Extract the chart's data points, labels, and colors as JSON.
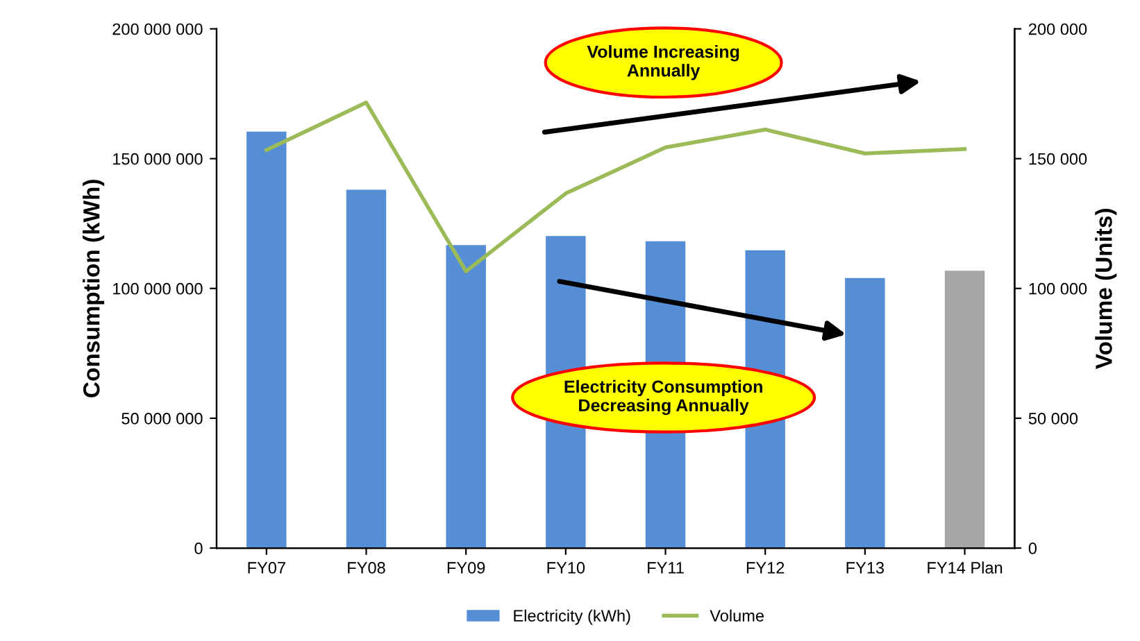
{
  "chart_data": {
    "type": "bar",
    "categories": [
      "FY07",
      "FY08",
      "FY09",
      "FY10",
      "FY11",
      "FY12",
      "FY13",
      "FY14 Plan"
    ],
    "ylabel": "Consumption (kWh)",
    "y2label": "Volume (Units)",
    "series": [
      {
        "name": "Electricity (kWh)",
        "color": "#558ed5",
        "colors": [
          "#558ed5",
          "#558ed5",
          "#558ed5",
          "#558ed5",
          "#558ed5",
          "#558ed5",
          "#558ed5",
          "#a6a6a6"
        ],
        "values": [
          160400000,
          138000000,
          116700000,
          120200000,
          118200000,
          114700000,
          104000000,
          106800000
        ]
      },
      {
        "name": "Volume",
        "type": "line",
        "axis": "y2",
        "color": "#9bbb59",
        "values": [
          153300,
          171600,
          106600,
          136600,
          154300,
          161200,
          152000,
          153700
        ]
      }
    ],
    "ylim": [
      0,
      200000000
    ],
    "yticks": [
      {
        "value": 0,
        "label": "0"
      },
      {
        "value": 50000000,
        "label": "50 000 000"
      },
      {
        "value": 100000000,
        "label": "100 000 000"
      },
      {
        "value": 150000000,
        "label": "150 000 000"
      },
      {
        "value": 200000000,
        "label": "200 000 000"
      }
    ],
    "y2lim": [
      0,
      200000
    ],
    "y2ticks": [
      {
        "value": 0,
        "label": "0"
      },
      {
        "value": 50000,
        "label": "50 000"
      },
      {
        "value": 100000,
        "label": "100 000"
      },
      {
        "value": 150000,
        "label": "150 000"
      },
      {
        "value": 200000,
        "label": "200 000"
      }
    ],
    "annotations": [
      "Volume Increasing\nAnnually",
      "Electricity Consumption\nDecreasing Annually"
    ],
    "grid": false,
    "legend": "bottom",
    "marker": "none",
    "line_style": "solid"
  }
}
